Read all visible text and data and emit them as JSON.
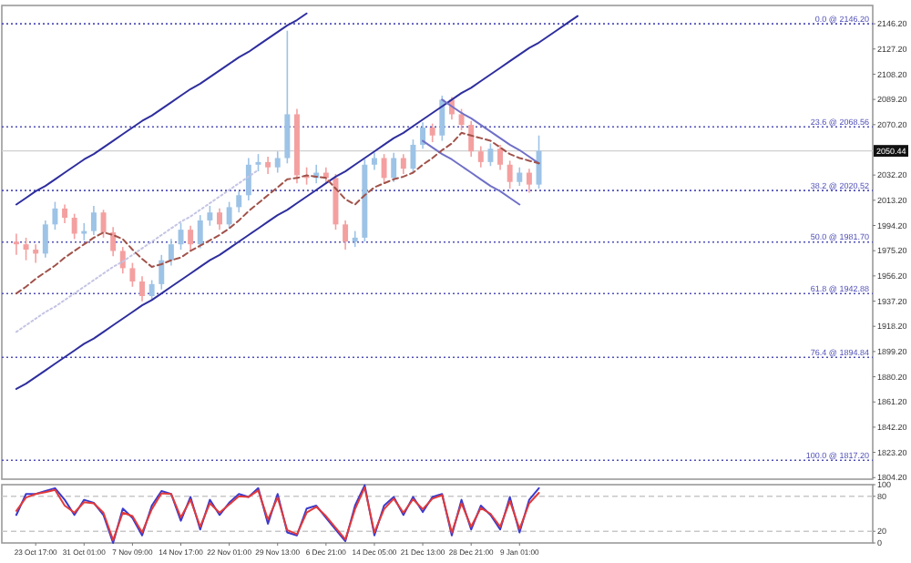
{
  "chart_data": [
    {
      "type": "candlestick",
      "tick_labels": "y",
      "ylim": [
        1803,
        2160
      ],
      "categories": [
        null,
        null,
        null,
        null,
        null,
        null,
        null,
        null,
        null,
        null,
        null,
        null,
        null,
        null,
        null,
        null,
        null,
        null,
        null,
        null,
        null,
        null,
        null,
        null,
        null,
        null,
        null,
        null,
        null,
        null,
        null,
        null,
        null,
        null,
        null,
        null,
        null,
        null,
        null,
        null,
        null,
        null,
        null,
        null,
        null,
        null,
        null,
        null,
        null,
        null,
        null,
        null,
        null,
        null,
        null,
        null,
        null,
        null,
        null
      ],
      "yticks": [
        {
          "value": 2146.2,
          "label": "2146.20"
        },
        {
          "value": 2127.2,
          "label": "2127.20"
        },
        {
          "value": 2108.2,
          "label": "2108.20"
        },
        {
          "value": 2089.2,
          "label": "2089.20"
        },
        {
          "value": 2070.2,
          "label": "2070.20"
        },
        {
          "value": 2032.2,
          "label": "2032.20"
        },
        {
          "value": 2013.2,
          "label": "2013.20"
        },
        {
          "value": 1994.2,
          "label": "1994.20"
        },
        {
          "value": 1975.2,
          "label": "1975.20"
        },
        {
          "value": 1956.2,
          "label": "1956.20"
        },
        {
          "value": 1937.2,
          "label": "1937.20"
        },
        {
          "value": 1918.2,
          "label": "1918.20"
        },
        {
          "value": 1899.2,
          "label": "1899.20"
        },
        {
          "value": 1880.2,
          "label": "1880.20"
        },
        {
          "value": 1861.2,
          "label": "1861.20"
        },
        {
          "value": 1842.2,
          "label": "1842.20"
        },
        {
          "value": 1823.2,
          "label": "1823.20"
        },
        {
          "value": 1804.2,
          "label": "1804.20"
        }
      ],
      "colors": [
        "#f4a0a0",
        "#f4a0a0",
        "#f4a0a0",
        "#9dc3e6",
        "#9dc3e6",
        "#f4a0a0",
        "#f4a0a0",
        "#9dc3e6",
        "#9dc3e6",
        "#f4a0a0",
        "#f4a0a0",
        "#f4a0a0",
        "#f4a0a0",
        "#f4a0a0",
        "#9dc3e6",
        "#9dc3e6",
        "#9dc3e6",
        "#9dc3e6",
        "#f4a0a0",
        "#9dc3e6",
        "#9dc3e6",
        "#f4a0a0",
        "#9dc3e6",
        "#9dc3e6",
        "#9dc3e6",
        "#9dc3e6",
        "#f4a0a0",
        "#9dc3e6",
        "#9dc3e6",
        "#f4a0a0",
        "#f4a0a0",
        "#9dc3e6",
        "#f4a0a0",
        "#f4a0a0",
        "#f4a0a0",
        "#9dc3e6",
        "#9dc3e6",
        "#9dc3e6",
        "#f4a0a0",
        "#9dc3e6",
        "#f4a0a0",
        "#9dc3e6",
        "#9dc3e6",
        "#f4a0a0",
        "#9dc3e6",
        "#f4a0a0",
        "#f4a0a0",
        "#f4a0a0",
        "#f4a0a0",
        "#9dc3e6",
        "#f4a0a0",
        "#f4a0a0",
        "#9dc3e6",
        "#f4a0a0",
        "#9dc3e6",
        null,
        null,
        null,
        null
      ],
      "ohlc": [
        [
          1982,
          1988,
          1972,
          1980
        ],
        [
          1980,
          1985,
          1968,
          1976
        ],
        [
          1976,
          1980,
          1966,
          1973
        ],
        [
          1973,
          1998,
          1970,
          1995
        ],
        [
          1995,
          2012,
          1991,
          2007
        ],
        [
          2007,
          2010,
          1996,
          2000
        ],
        [
          2000,
          2003,
          1984,
          1988
        ],
        [
          1988,
          1996,
          1983,
          1990
        ],
        [
          1990,
          2009,
          1987,
          2004
        ],
        [
          2004,
          2006,
          1985,
          1989
        ],
        [
          1989,
          1993,
          1971,
          1975
        ],
        [
          1975,
          1978,
          1958,
          1962
        ],
        [
          1962,
          1966,
          1948,
          1952
        ],
        [
          1952,
          1956,
          1937,
          1941
        ],
        [
          1941,
          1953,
          1938,
          1950
        ],
        [
          1950,
          1972,
          1946,
          1968
        ],
        [
          1968,
          1984,
          1964,
          1980
        ],
        [
          1980,
          1996,
          1976,
          1991
        ],
        [
          1991,
          1994,
          1975,
          1980
        ],
        [
          1980,
          2002,
          1977,
          1998
        ],
        [
          1998,
          2009,
          1994,
          2004
        ],
        [
          2004,
          2007,
          1991,
          1995
        ],
        [
          1995,
          2012,
          1992,
          2008
        ],
        [
          2008,
          2020,
          2004,
          2017
        ],
        [
          2017,
          2045,
          2013,
          2040
        ],
        [
          2040,
          2048,
          2035,
          2042
        ],
        [
          2042,
          2046,
          2033,
          2038
        ],
        [
          2038,
          2050,
          2034,
          2045
        ],
        [
          2045,
          2141,
          2041,
          2078
        ],
        [
          2078,
          2082,
          2026,
          2032
        ],
        [
          2032,
          2038,
          2025,
          2030
        ],
        [
          2030,
          2040,
          2026,
          2034
        ],
        [
          2034,
          2038,
          2026,
          2030
        ],
        [
          2030,
          2033,
          1991,
          1995
        ],
        [
          1995,
          1998,
          1976,
          1982
        ],
        [
          1982,
          1990,
          1978,
          1985
        ],
        [
          1985,
          2044,
          1982,
          2040
        ],
        [
          2040,
          2049,
          2036,
          2045
        ],
        [
          2045,
          2048,
          2026,
          2030
        ],
        [
          2030,
          2049,
          2027,
          2045
        ],
        [
          2045,
          2048,
          2033,
          2037
        ],
        [
          2037,
          2059,
          2034,
          2055
        ],
        [
          2055,
          2072,
          2052,
          2068
        ],
        [
          2068,
          2071,
          2057,
          2062
        ],
        [
          2062,
          2092,
          2058,
          2089
        ],
        [
          2089,
          2091,
          2074,
          2078
        ],
        [
          2078,
          2082,
          2066,
          2070
        ],
        [
          2070,
          2073,
          2046,
          2050
        ],
        [
          2050,
          2054,
          2038,
          2042
        ],
        [
          2042,
          2056,
          2039,
          2052
        ],
        [
          2052,
          2055,
          2036,
          2040
        ],
        [
          2040,
          2043,
          2022,
          2027
        ],
        [
          2027,
          2038,
          2024,
          2034
        ],
        [
          2034,
          2037,
          2019,
          2025
        ],
        [
          2025,
          2062,
          2022,
          2050.44
        ],
        null,
        null,
        null,
        null
      ],
      "series": [
        {
          "type": "line",
          "color": "#2e2e9e",
          "line_style": "solid",
          "values": [
            2010,
            2015,
            2020,
            2024,
            2029,
            2034,
            2039,
            2044,
            2048,
            2053,
            2058,
            2063,
            2068,
            2073,
            2077,
            2082,
            2087,
            2092,
            2097,
            2101,
            2106,
            2111,
            2116,
            2121,
            2125,
            2130,
            2135,
            2140,
            2145,
            2149,
            2154,
            null,
            null,
            null,
            null,
            null,
            null,
            null,
            null,
            null,
            null,
            null,
            null,
            null,
            null,
            null,
            null,
            null,
            null,
            null,
            null,
            null,
            null,
            null,
            null,
            null,
            null,
            null,
            null
          ]
        },
        {
          "type": "line",
          "color": "#2e2e9e",
          "line_style": "solid",
          "values": [
            1871,
            1875,
            1880,
            1885,
            1890,
            1895,
            1900,
            1905,
            1909,
            1914,
            1919,
            1924,
            1929,
            1934,
            1938,
            1943,
            1948,
            1953,
            1958,
            1963,
            1968,
            1972,
            1977,
            1982,
            1987,
            1992,
            1997,
            2002,
            2006,
            2011,
            2016,
            2021,
            2026,
            2031,
            2035,
            2040,
            2045,
            2050,
            2055,
            2060,
            2064,
            2069,
            2074,
            2079,
            2084,
            2089,
            2094,
            2098,
            2103,
            2108,
            2113,
            2118,
            2123,
            2128,
            2132,
            2137,
            2142,
            2147,
            2152
          ]
        },
        {
          "type": "line",
          "color": "#c4c4e4",
          "line_style": "dotted",
          "values": [
            1914,
            1919,
            1924,
            1929,
            1933,
            1938,
            1943,
            1948,
            1953,
            1958,
            1963,
            1967,
            1972,
            1977,
            1982,
            1987,
            1992,
            1997,
            2001,
            2006,
            2011,
            2016,
            2021,
            2026,
            2031,
            2036,
            null,
            null,
            null,
            null,
            null,
            null,
            null,
            null,
            null,
            null,
            null,
            null,
            null,
            null,
            null,
            null,
            null,
            null,
            null,
            null,
            null,
            null,
            null,
            null,
            null,
            null,
            null,
            null,
            null,
            null,
            null,
            null,
            null
          ]
        },
        {
          "type": "line",
          "color": "#7070c8",
          "line_style": "solid",
          "values": [
            null,
            null,
            null,
            null,
            null,
            null,
            null,
            null,
            null,
            null,
            null,
            null,
            null,
            null,
            null,
            null,
            null,
            null,
            null,
            null,
            null,
            null,
            null,
            null,
            null,
            null,
            null,
            null,
            null,
            null,
            null,
            null,
            null,
            null,
            null,
            null,
            null,
            null,
            null,
            null,
            null,
            null,
            null,
            null,
            2089,
            2084,
            2079,
            2075,
            2070,
            2065,
            2060,
            2055,
            2051,
            2046,
            2041,
            null,
            null,
            null,
            null
          ]
        },
        {
          "type": "line",
          "color": "#7070c8",
          "line_style": "solid",
          "values": [
            null,
            null,
            null,
            null,
            null,
            null,
            null,
            null,
            null,
            null,
            null,
            null,
            null,
            null,
            null,
            null,
            null,
            null,
            null,
            null,
            null,
            null,
            null,
            null,
            null,
            null,
            null,
            null,
            null,
            null,
            null,
            null,
            null,
            null,
            null,
            null,
            null,
            null,
            null,
            null,
            null,
            null,
            2058,
            2053,
            2048,
            2044,
            2039,
            2034,
            2029,
            2024,
            2020,
            2015,
            2010,
            null,
            null,
            null,
            null,
            null,
            null
          ]
        },
        {
          "type": "line",
          "color": "#a0524a",
          "line_style": "dashed",
          "values": [
            1943,
            1948,
            1954,
            1959,
            1964,
            1970,
            1975,
            1980,
            1985,
            1989,
            1987,
            1984,
            1976,
            1969,
            1963,
            1965,
            1968,
            1970,
            1975,
            1979,
            1983,
            1987,
            1992,
            1998,
            2005,
            2011,
            2017,
            2023,
            2029,
            2030,
            2032,
            2031,
            2030,
            2022,
            2014,
            2010,
            2017,
            2023,
            2026,
            2029,
            2031,
            2034,
            2040,
            2045,
            2051,
            2056,
            2064,
            2062,
            2060,
            2058,
            2053,
            2048,
            2045,
            2043,
            2041,
            null,
            null,
            null,
            null
          ]
        }
      ],
      "ref_lines": [
        {
          "axis": "y",
          "value": 2146.2,
          "label": "0.0 @ 2146.20",
          "color": "#5050b8",
          "line_style": "dotted"
        },
        {
          "axis": "y",
          "value": 2068.56,
          "label": "23.6 @ 2068.56",
          "color": "#5050b8",
          "line_style": "dotted"
        },
        {
          "axis": "y",
          "value": 2020.52,
          "label": "38.2 @ 2020.52",
          "color": "#5050b8",
          "line_style": "dotted"
        },
        {
          "axis": "y",
          "value": 1981.7,
          "label": "50.0 @ 1981.70",
          "color": "#5050b8",
          "line_style": "dotted"
        },
        {
          "axis": "y",
          "value": 1942.88,
          "label": "61.8 @ 1942.88",
          "color": "#5050b8",
          "line_style": "dotted"
        },
        {
          "axis": "y",
          "value": 1894.84,
          "label": "76.4 @ 1894.84",
          "color": "#5050b8",
          "line_style": "dotted"
        },
        {
          "axis": "y",
          "value": 1817.2,
          "label": "100.0 @ 1817.20",
          "color": "#5050b8",
          "line_style": "dotted"
        },
        {
          "axis": "y",
          "value": 2050.44,
          "label": "2050.44",
          "color": "#d0d0d0",
          "line_style": "solid"
        }
      ]
    },
    {
      "type": "line",
      "ylim": [
        0,
        100
      ],
      "yticks": [
        0,
        20,
        80,
        100
      ],
      "categories": [
        null,
        null,
        "23 Oct 17:00",
        null,
        null,
        null,
        null,
        "31 Oct 01:00",
        null,
        null,
        null,
        null,
        "7 Nov 09:00",
        null,
        null,
        null,
        null,
        "14 Nov 17:00",
        null,
        null,
        null,
        null,
        "22 Nov 01:00",
        null,
        null,
        null,
        null,
        "29 Nov 13:00",
        null,
        null,
        null,
        null,
        "6 Dec 21:00",
        null,
        null,
        null,
        null,
        "14 Dec 05:00",
        null,
        null,
        null,
        null,
        "21 Dec 13:00",
        null,
        null,
        null,
        null,
        "28 Dec 21:00",
        null,
        null,
        null,
        null,
        "9 Jan 01:00",
        null,
        null,
        null,
        null,
        null,
        null
      ],
      "ref_lines": [
        {
          "axis": "y",
          "value": 80,
          "color": "#c8c8c8",
          "line_style": "dashed"
        },
        {
          "axis": "y",
          "value": 20,
          "color": "#c8c8c8",
          "line_style": "dashed"
        }
      ],
      "series": [
        {
          "color": "#3a3acc",
          "values": [
            48,
            84,
            84,
            89,
            94,
            74,
            48,
            74,
            69,
            48,
            0,
            59,
            43,
            13,
            64,
            89,
            84,
            38,
            79,
            23,
            74,
            48,
            69,
            84,
            79,
            94,
            33,
            84,
            18,
            13,
            59,
            64,
            43,
            23,
            3,
            64,
            99,
            13,
            64,
            79,
            48,
            79,
            53,
            79,
            84,
            13,
            74,
            23,
            64,
            48,
            23,
            79,
            18,
            74,
            94,
            null,
            null,
            null,
            null
          ]
        },
        {
          "color": "#e23a3a",
          "values": [
            55,
            78,
            84,
            87,
            91,
            64,
            52,
            70,
            68,
            52,
            5,
            52,
            46,
            18,
            58,
            85,
            84,
            44,
            74,
            28,
            68,
            52,
            66,
            80,
            79,
            90,
            40,
            78,
            22,
            15,
            52,
            62,
            46,
            26,
            6,
            58,
            95,
            18,
            58,
            76,
            52,
            75,
            58,
            76,
            82,
            18,
            68,
            28,
            60,
            50,
            28,
            72,
            24,
            68,
            86,
            null,
            null,
            null,
            null
          ]
        }
      ]
    }
  ]
}
